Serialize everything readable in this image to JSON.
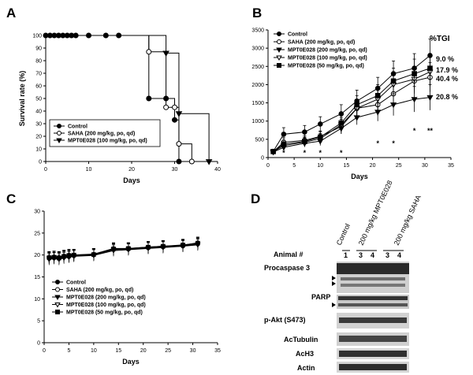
{
  "panels": {
    "A": {
      "letter": "A"
    },
    "B": {
      "letter": "B",
      "tgi_header": "%TGI"
    },
    "C": {
      "letter": "C"
    },
    "D": {
      "letter": "D"
    }
  },
  "chart_data": [
    {
      "id": "A",
      "type": "line",
      "step": true,
      "xlabel": "Days",
      "ylabel": "Survival rate (%)",
      "xlim": [
        0,
        40
      ],
      "ylim": [
        0,
        100
      ],
      "xticks": [
        "0",
        "10",
        "20",
        "30",
        "40"
      ],
      "yticks": [
        "0",
        "10",
        "20",
        "30",
        "40",
        "50",
        "60",
        "70",
        "80",
        "90",
        "100"
      ],
      "legend_position": "bottom-left",
      "series": [
        {
          "name": "Control",
          "marker": "circle-filled",
          "x": [
            0,
            1,
            2,
            3,
            4,
            5,
            6,
            7,
            10,
            14,
            17,
            24,
            28,
            30,
            31
          ],
          "y": [
            100,
            100,
            100,
            100,
            100,
            100,
            100,
            100,
            100,
            100,
            100,
            50,
            50,
            33,
            0
          ]
        },
        {
          "name": "SAHA (200 mg/kg, po, qd)",
          "marker": "circle-open",
          "x": [
            24,
            28,
            30,
            31,
            34
          ],
          "y": [
            87,
            43,
            43,
            14,
            0
          ]
        },
        {
          "name": "MPT0E028 (100 mg/kg, po, qd)",
          "marker": "triangle-down-filled",
          "x": [
            28,
            31,
            38
          ],
          "y": [
            86,
            38,
            0
          ]
        }
      ]
    },
    {
      "id": "B",
      "type": "line",
      "xlabel": "Days",
      "ylabel": "",
      "xlim": [
        0,
        35
      ],
      "ylim": [
        0,
        3500
      ],
      "xticks": [
        "0",
        "5",
        "10",
        "15",
        "20",
        "25",
        "30",
        "35"
      ],
      "yticks": [
        "0",
        "500",
        "1000",
        "1500",
        "2000",
        "2500",
        "3000",
        "3500"
      ],
      "legend_position": "top-left",
      "x": [
        1,
        3,
        7,
        10,
        14,
        17,
        21,
        24,
        28,
        31
      ],
      "series": [
        {
          "name": "Control",
          "marker": "circle-filled",
          "values": [
            170,
            640,
            700,
            920,
            1200,
            1550,
            1900,
            2300,
            2450,
            2800
          ],
          "err": [
            60,
            180,
            180,
            200,
            250,
            300,
            300,
            350,
            400,
            450
          ],
          "tgi": "9.0 %"
        },
        {
          "name": "SAHA (200 mg/kg, po, qd)",
          "marker": "circle-open",
          "values": [
            160,
            420,
            470,
            580,
            850,
            1350,
            1450,
            1750,
            2100,
            2200
          ],
          "err": [
            50,
            120,
            130,
            150,
            200,
            250,
            300,
            300,
            350,
            400
          ],
          "tgi": "17.9 %"
        },
        {
          "name": "MPT0E028 (200 mg/kg, po, qd)",
          "marker": "triangle-down-filled",
          "values": [
            150,
            280,
            390,
            450,
            800,
            1100,
            1250,
            1450,
            1600,
            1650
          ],
          "err": [
            40,
            100,
            100,
            120,
            150,
            200,
            250,
            300,
            350,
            350
          ],
          "tgi": "40.4 %"
        },
        {
          "name": "MPT0E028 (100 mg/kg, po, qd)",
          "marker": "triangle-down-open",
          "values": [
            160,
            330,
            420,
            520,
            900,
            1350,
            1600,
            2000,
            2150,
            2350
          ],
          "err": [
            50,
            100,
            120,
            140,
            200,
            250,
            300,
            350,
            350,
            400
          ],
          "tgi": "20.8 %"
        },
        {
          "name": "MPT0E028 (50 mg/kg, po, qd)",
          "marker": "square-filled",
          "values": [
            165,
            370,
            440,
            560,
            950,
            1450,
            1700,
            2100,
            2300,
            2450
          ],
          "err": [
            50,
            110,
            120,
            150,
            200,
            250,
            300,
            350,
            400,
            400
          ]
        }
      ],
      "significance": [
        {
          "x": 3,
          "label": "*"
        },
        {
          "x": 7,
          "label": "*"
        },
        {
          "x": 10,
          "label": "*"
        },
        {
          "x": 14,
          "label": "*"
        },
        {
          "x": 21,
          "label": "*"
        },
        {
          "x": 24,
          "label": "*"
        },
        {
          "x": 28,
          "label": "*"
        },
        {
          "x": 31,
          "label": "**"
        }
      ]
    },
    {
      "id": "C",
      "type": "line",
      "xlabel": "Days",
      "ylabel": "",
      "xlim": [
        0,
        35
      ],
      "ylim": [
        0,
        30
      ],
      "xticks": [
        "0",
        "5",
        "10",
        "15",
        "20",
        "25",
        "30",
        "35"
      ],
      "yticks": [
        "0",
        "5",
        "10",
        "15",
        "20",
        "25",
        "30"
      ],
      "legend_position": "bottom-left",
      "x": [
        1,
        2,
        3,
        4,
        5,
        6,
        10,
        14,
        17,
        21,
        24,
        28,
        31
      ],
      "series": [
        {
          "name": "Control",
          "marker": "circle-filled",
          "values": [
            19.5,
            19.6,
            19.5,
            19.8,
            20.0,
            20.0,
            20.2,
            21.5,
            21.5,
            21.8,
            22.0,
            22.2,
            22.8
          ],
          "err": 1.3
        },
        {
          "name": "SAHA (200 mg/kg, po, qd)",
          "marker": "circle-open",
          "values": [
            19.2,
            19.3,
            19.2,
            19.5,
            19.6,
            19.8,
            20.0,
            21.2,
            21.3,
            21.6,
            21.8,
            22.0,
            22.5
          ],
          "err": 1.3
        },
        {
          "name": "MPT0E028 (200 mg/kg, po, qd)",
          "marker": "triangle-down-filled",
          "values": [
            19.0,
            19.2,
            19.0,
            19.3,
            19.5,
            19.7,
            19.9,
            21.0,
            21.2,
            21.5,
            21.7,
            22.0,
            22.3
          ],
          "err": 1.3
        },
        {
          "name": "MPT0E028 (100 mg/kg, po, qd)",
          "marker": "triangle-down-open",
          "values": [
            19.3,
            19.5,
            19.4,
            19.6,
            19.8,
            19.9,
            20.1,
            21.3,
            21.4,
            21.7,
            21.9,
            22.1,
            22.6
          ],
          "err": 1.3
        },
        {
          "name": "MPT0E028 (50 mg/kg, po, qd)",
          "marker": "square-filled",
          "values": [
            19.4,
            19.5,
            19.3,
            19.7,
            19.9,
            20.0,
            20.1,
            21.4,
            21.5,
            21.8,
            22.0,
            22.3,
            22.7
          ],
          "err": 1.3
        }
      ]
    }
  ],
  "blot": {
    "groups": [
      "Control",
      "200 mg/kg MPT0E028",
      "200 mg/kg SAHA"
    ],
    "animal_label": "Animal #",
    "animals": [
      "1",
      "3",
      "4",
      "3",
      "4"
    ],
    "rows": [
      "Procaspase 3",
      "PARP",
      "p-Akt (S473)",
      "AcTubulin",
      "AcH3",
      "Actin"
    ]
  }
}
